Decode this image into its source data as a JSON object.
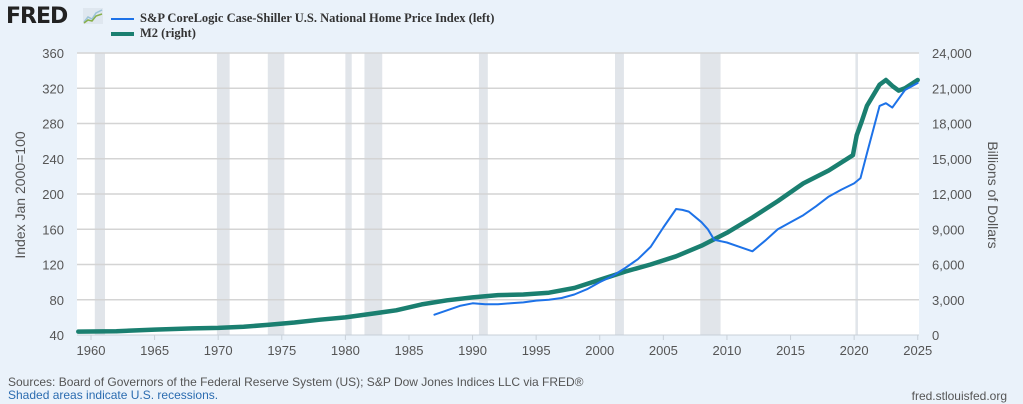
{
  "header": {
    "logo_text": "FRED",
    "logo_icon": "line-chart-icon",
    "legend": [
      {
        "label": "S&P CoreLogic Case-Shiller U.S. National Home Price Index (left)",
        "color": "#1d72e8"
      },
      {
        "label": "M2 (right)",
        "color": "#1a7f70"
      }
    ]
  },
  "footer": {
    "sources": "Sources: Board of Governors of the Federal Reserve System (US); S&P Dow Jones Indices LLC via FRED®",
    "recessions_note": "Shaded areas indicate U.S. recessions.",
    "site": "fred.stlouisfed.org"
  },
  "chart_data": {
    "type": "line",
    "title": "",
    "xlabel": "",
    "ylabel_left": "Index Jan 2000=100",
    "ylabel_right": "Billions of Dollars",
    "xlim": [
      1958.9,
      2025.1
    ],
    "ylim_left": [
      40,
      360
    ],
    "ylim_right": [
      0,
      24000
    ],
    "x_ticks": [
      "1960",
      "1965",
      "1970",
      "1975",
      "1980",
      "1985",
      "1990",
      "1995",
      "2000",
      "2005",
      "2010",
      "2015",
      "2020",
      "2025"
    ],
    "y_ticks_left": [
      "40",
      "80",
      "120",
      "160",
      "200",
      "240",
      "280",
      "320",
      "360"
    ],
    "y_ticks_right": [
      "0",
      "3,000",
      "6,000",
      "9,000",
      "12,000",
      "15,000",
      "18,000",
      "21,000",
      "24,000"
    ],
    "grid": true,
    "legend_position": "top-left",
    "recessions": [
      [
        1960.3,
        1961.1
      ],
      [
        1969.9,
        1970.9
      ],
      [
        1973.9,
        1975.2
      ],
      [
        1980.0,
        1980.5
      ],
      [
        1981.5,
        1982.9
      ],
      [
        1990.5,
        1991.2
      ],
      [
        2001.2,
        2001.9
      ],
      [
        2007.9,
        2009.5
      ],
      [
        2020.1,
        2020.3
      ]
    ],
    "series": [
      {
        "name": "S&P CoreLogic Case-Shiller U.S. National Home Price Index (left)",
        "axis": "left",
        "color": "#1d72e8",
        "x": [
          1987,
          1988,
          1989,
          1990,
          1991,
          1992,
          1993,
          1994,
          1995,
          1996,
          1997,
          1998,
          1999,
          2000,
          2001,
          2002,
          2003,
          2004,
          2005,
          2006,
          2006.5,
          2007,
          2008,
          2008.5,
          2009,
          2010,
          2011,
          2012,
          2013,
          2014,
          2015,
          2016,
          2017,
          2018,
          2019,
          2020,
          2020.5,
          2021,
          2022,
          2022.5,
          2023,
          2024,
          2025
        ],
        "values": [
          63,
          68,
          73,
          76,
          75,
          75,
          76,
          77,
          79,
          80,
          82,
          86,
          92,
          100,
          107,
          116,
          126,
          140,
          162,
          183,
          182,
          180,
          168,
          160,
          148,
          145,
          140,
          135,
          147,
          160,
          168,
          176,
          186,
          197,
          205,
          212,
          218,
          246,
          300,
          303,
          298,
          318,
          326
        ]
      },
      {
        "name": "M2 (right)",
        "axis": "right",
        "color": "#1a7f70",
        "x": [
          1959,
          1962,
          1965,
          1968,
          1970,
          1972,
          1974,
          1976,
          1978,
          1980,
          1982,
          1984,
          1986,
          1988,
          1990,
          1992,
          1994,
          1996,
          1998,
          2000,
          2002,
          2004,
          2006,
          2008,
          2010,
          2012,
          2014,
          2016,
          2018,
          2019.9,
          2020.2,
          2020.6,
          2021,
          2022,
          2022.5,
          2023,
          2023.5,
          2024,
          2025
        ],
        "values": [
          290,
          320,
          460,
          560,
          600,
          700,
          880,
          1060,
          1300,
          1500,
          1800,
          2100,
          2600,
          2950,
          3200,
          3400,
          3450,
          3600,
          4000,
          4700,
          5400,
          6000,
          6700,
          7600,
          8700,
          10000,
          11400,
          12900,
          14000,
          15300,
          17000,
          18200,
          19500,
          21300,
          21700,
          21200,
          20800,
          21000,
          21700
        ]
      }
    ]
  }
}
